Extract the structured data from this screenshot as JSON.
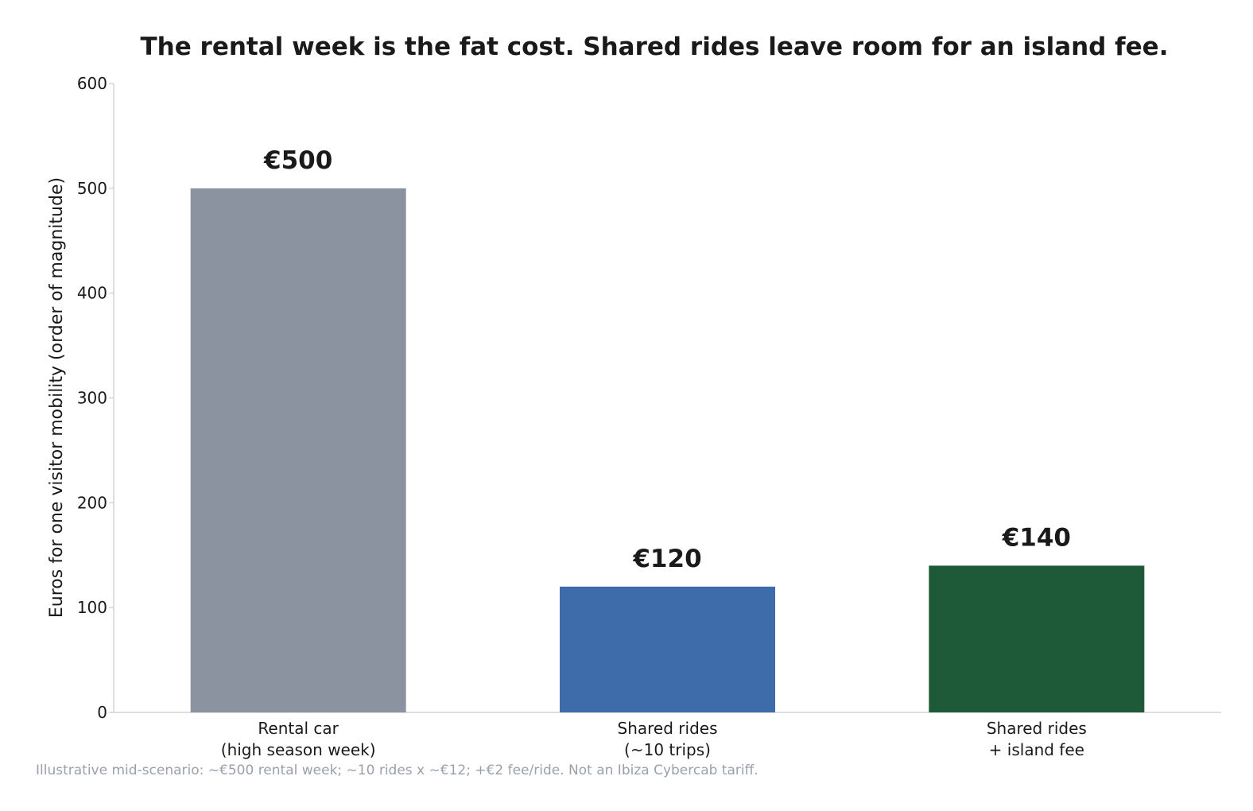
{
  "chart_data": {
    "type": "bar",
    "title": "The rental week is the fat cost. Shared rides leave room for an island fee.",
    "ylabel": "Euros for one visitor mobility (order of magnitude)",
    "xlabel": "",
    "ylim": [
      0,
      600
    ],
    "yticks": [
      0,
      100,
      200,
      300,
      400,
      500,
      600
    ],
    "categories": [
      [
        "Rental car",
        "(high season week)"
      ],
      [
        "Shared rides",
        "(~10 trips)"
      ],
      [
        "Shared rides",
        "+ island fee"
      ]
    ],
    "values": [
      500,
      120,
      140
    ],
    "value_labels": [
      "€500",
      "€120",
      "€140"
    ],
    "colors": [
      "#8c93a0",
      "#3e6ba9",
      "#1f5a38"
    ],
    "grid": false,
    "legend": "none",
    "footnote": "Illustrative mid-scenario: ~€500 rental week; ~10 rides x ~€12; +€2 fee/ride. Not an Ibiza Cybercab tariff."
  }
}
